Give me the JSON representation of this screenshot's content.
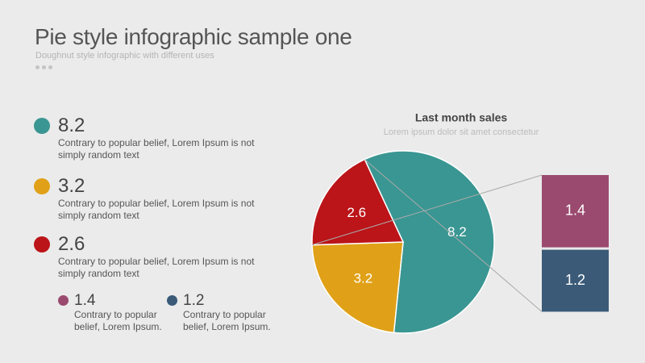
{
  "header": {
    "title": "Pie style infographic sample one",
    "subtitle": "Doughnut style infographic with different uses"
  },
  "notes": [
    "Contrary to popular belief, Lorem Ipsum is not simply random text",
    "Contrary to popular belief, Lorem Ipsum is not simply random text",
    "Contrary to popular belief, Lorem Ipsum is not simply random text",
    "Contrary to popular belief, Lorem Ipsum.",
    "Contrary to popular belief, Lorem Ipsum."
  ],
  "chart_data": {
    "type": "pie",
    "title": "Last month sales",
    "subtitle": "Lorem ipsum dolor sit amet consectetur",
    "values": [
      8.2,
      3.2,
      2.6
    ],
    "colors": [
      "#3a9692",
      "#e0a118",
      "#bb1419"
    ],
    "breakdown": {
      "values": [
        1.4,
        1.2
      ],
      "colors": [
        "#9b4a6f",
        "#3a5a78"
      ]
    }
  }
}
